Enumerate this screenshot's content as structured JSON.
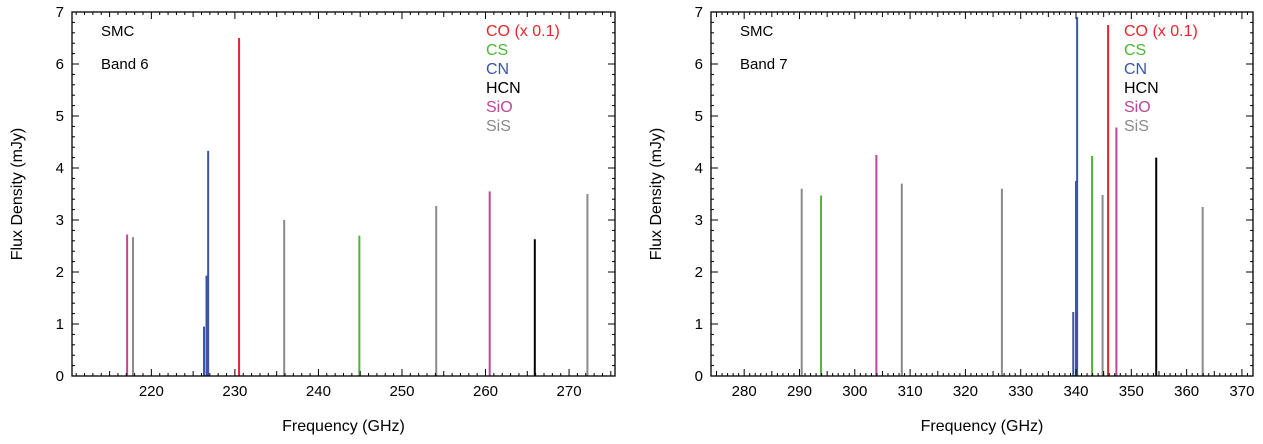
{
  "chart_data": [
    {
      "type": "bar",
      "subtype": "spectral-line-stick-plot",
      "title": "",
      "annotations": [
        "SMC",
        "Band 6"
      ],
      "xlabel": "Frequency (GHz)",
      "ylabel": "Flux Density (mJy)",
      "xlim": [
        210.5,
        275.5
      ],
      "ylim": [
        0,
        7
      ],
      "xticks": [
        220,
        230,
        240,
        250,
        260,
        270
      ],
      "yticks": [
        0,
        1,
        2,
        3,
        4,
        5,
        6,
        7
      ],
      "grid": false,
      "legend_position": "top-right",
      "series": [
        {
          "name": "CO (x 0.1)",
          "color": "#e8242b",
          "points": [
            {
              "x": 230.5,
              "y": 6.5
            }
          ]
        },
        {
          "name": "CS",
          "color": "#4cb535",
          "points": [
            {
              "x": 244.9,
              "y": 2.7
            }
          ]
        },
        {
          "name": "CN",
          "color": "#3a55a8",
          "points": [
            {
              "x": 226.3,
              "y": 0.95
            },
            {
              "x": 226.6,
              "y": 1.93
            },
            {
              "x": 226.8,
              "y": 4.33
            }
          ]
        },
        {
          "name": "HCN",
          "color": "#000000",
          "points": [
            {
              "x": 265.9,
              "y": 2.63
            }
          ]
        },
        {
          "name": "SiO",
          "color": "#c0449b",
          "points": [
            {
              "x": 217.1,
              "y": 2.72
            },
            {
              "x": 260.5,
              "y": 3.55
            }
          ]
        },
        {
          "name": "SiS",
          "color": "#8a8a8a",
          "points": [
            {
              "x": 217.8,
              "y": 2.67
            },
            {
              "x": 235.9,
              "y": 3.0
            },
            {
              "x": 254.1,
              "y": 3.27
            },
            {
              "x": 272.2,
              "y": 3.5
            }
          ]
        }
      ]
    },
    {
      "type": "bar",
      "subtype": "spectral-line-stick-plot",
      "title": "",
      "annotations": [
        "SMC",
        "Band 7"
      ],
      "xlabel": "Frequency (GHz)",
      "ylabel": "Flux Density (mJy)",
      "xlim": [
        274,
        372
      ],
      "ylim": [
        0,
        7
      ],
      "xticks": [
        280,
        290,
        300,
        310,
        320,
        330,
        340,
        350,
        360,
        370
      ],
      "yticks": [
        0,
        1,
        2,
        3,
        4,
        5,
        6,
        7
      ],
      "grid": false,
      "legend_position": "top-right",
      "series": [
        {
          "name": "CO (x 0.1)",
          "color": "#e8242b",
          "points": [
            {
              "x": 345.8,
              "y": 6.75
            }
          ]
        },
        {
          "name": "CS",
          "color": "#4cb535",
          "points": [
            {
              "x": 293.9,
              "y": 3.47
            },
            {
              "x": 342.9,
              "y": 4.23
            }
          ]
        },
        {
          "name": "CN",
          "color": "#3a55a8",
          "points": [
            {
              "x": 339.5,
              "y": 1.23
            },
            {
              "x": 340.0,
              "y": 3.75
            },
            {
              "x": 340.2,
              "y": 6.9
            }
          ]
        },
        {
          "name": "HCN",
          "color": "#000000",
          "points": [
            {
              "x": 354.5,
              "y": 4.2
            }
          ]
        },
        {
          "name": "SiO",
          "color": "#c0449b",
          "points": [
            {
              "x": 303.9,
              "y": 4.25
            },
            {
              "x": 347.3,
              "y": 4.78
            }
          ]
        },
        {
          "name": "SiS",
          "color": "#8a8a8a",
          "points": [
            {
              "x": 290.4,
              "y": 3.6
            },
            {
              "x": 308.5,
              "y": 3.7
            },
            {
              "x": 326.6,
              "y": 3.6
            },
            {
              "x": 344.8,
              "y": 3.48
            },
            {
              "x": 362.9,
              "y": 3.25
            }
          ]
        }
      ]
    }
  ]
}
